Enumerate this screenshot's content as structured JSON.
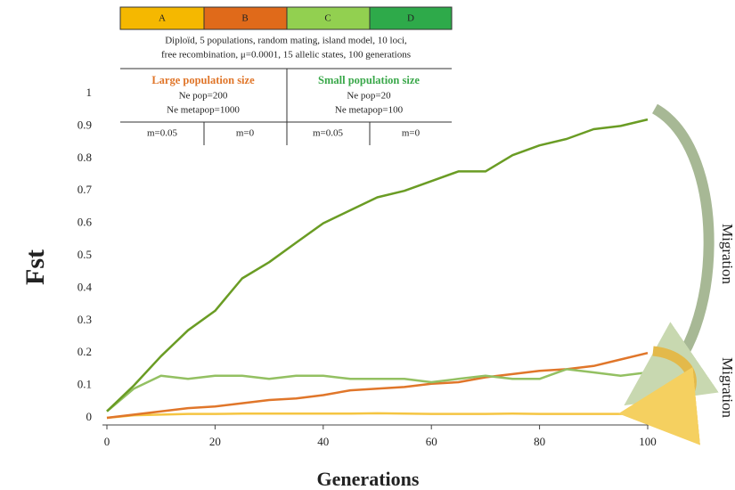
{
  "chart_data": {
    "type": "line",
    "x_label": "Generations",
    "y_label": "Fst",
    "x": [
      0,
      5,
      10,
      15,
      20,
      25,
      30,
      35,
      40,
      45,
      50,
      55,
      60,
      65,
      70,
      75,
      80,
      85,
      90,
      95,
      100
    ],
    "series": [
      {
        "name": "A",
        "color": "#f5c542",
        "values": [
          0,
          0.008,
          0.01,
          0.012,
          0.012,
          0.013,
          0.013,
          0.013,
          0.013,
          0.013,
          0.014,
          0.013,
          0.012,
          0.012,
          0.012,
          0.013,
          0.012,
          0.012,
          0.012,
          0.012,
          0.012
        ]
      },
      {
        "name": "B",
        "color": "#e0762a",
        "values": [
          0,
          0.01,
          0.02,
          0.03,
          0.035,
          0.045,
          0.055,
          0.06,
          0.07,
          0.085,
          0.09,
          0.095,
          0.105,
          0.11,
          0.125,
          0.135,
          0.145,
          0.15,
          0.16,
          0.18,
          0.2
        ]
      },
      {
        "name": "C",
        "color": "#93c062",
        "values": [
          0.02,
          0.09,
          0.13,
          0.12,
          0.13,
          0.13,
          0.12,
          0.13,
          0.13,
          0.12,
          0.12,
          0.12,
          0.11,
          0.12,
          0.13,
          0.12,
          0.12,
          0.15,
          0.14,
          0.13,
          0.14
        ]
      },
      {
        "name": "D",
        "color": "#6a9c24",
        "values": [
          0.02,
          0.1,
          0.19,
          0.27,
          0.33,
          0.43,
          0.48,
          0.54,
          0.6,
          0.64,
          0.68,
          0.7,
          0.73,
          0.76,
          0.76,
          0.81,
          0.84,
          0.86,
          0.89,
          0.9,
          0.92
        ]
      }
    ],
    "xlim": [
      0,
      100
    ],
    "xticks": [
      0,
      20,
      40,
      60,
      80,
      100
    ],
    "ylim": [
      0,
      1
    ],
    "yticks": [
      0,
      0.1,
      0.2,
      0.3,
      0.4,
      0.5,
      0.6,
      0.7,
      0.8,
      0.9,
      1
    ],
    "annotations": [
      "Migration",
      "Migration"
    ]
  },
  "legend_table": {
    "scenarios": [
      "A",
      "B",
      "C",
      "D"
    ],
    "description": [
      "Diploïd, 5 populations, random mating, island model, 10 loci,",
      "free recombination, μ=0.0001, 15 allelic states, 100 generations"
    ],
    "groups": [
      {
        "title": "Large population size",
        "lines": [
          "Ne pop=200",
          "Ne metapop=1000"
        ]
      },
      {
        "title": "Small population size",
        "lines": [
          "Ne pop=20",
          "Ne metapop=100"
        ]
      }
    ],
    "migration": [
      "m=0.05",
      "m=0",
      "m=0.05",
      "m=0"
    ]
  }
}
